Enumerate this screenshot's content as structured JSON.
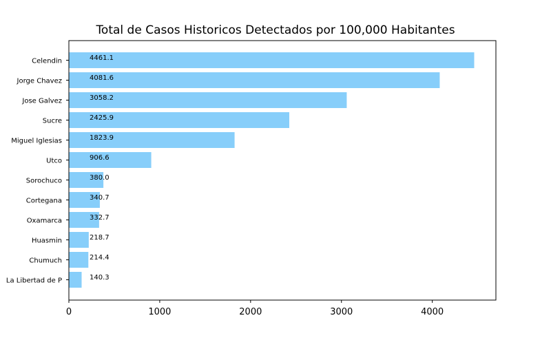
{
  "chart_data": {
    "type": "bar",
    "orientation": "horizontal",
    "title": "Total de Casos Historicos Detectados por 100,000 Habitantes",
    "xlabel": "",
    "ylabel": "",
    "xlim": [
      0,
      4700
    ],
    "xticks": [
      0,
      1000,
      2000,
      3000,
      4000
    ],
    "xtick_labels": [
      "0",
      "1000",
      "2000",
      "3000",
      "4000"
    ],
    "grid": false,
    "categories": [
      "Celendin",
      "Jorge Chavez",
      "Jose Galvez",
      "Sucre",
      "Miguel Iglesias",
      "Utco",
      "Sorochuco",
      "Cortegana",
      "Oxamarca",
      "Huasmin",
      "Chumuch",
      "La Libertad de P"
    ],
    "values": [
      4461.1,
      4081.6,
      3058.2,
      2425.9,
      1823.9,
      906.6,
      380.0,
      340.7,
      332.7,
      218.7,
      214.4,
      140.3
    ],
    "value_labels": [
      "4461.1",
      "4081.6",
      "3058.2",
      "2425.9",
      "1823.9",
      "906.6",
      "380.0",
      "340.7",
      "332.7",
      "218.7",
      "214.4",
      "140.3"
    ],
    "bar_color": "#87cefa"
  }
}
